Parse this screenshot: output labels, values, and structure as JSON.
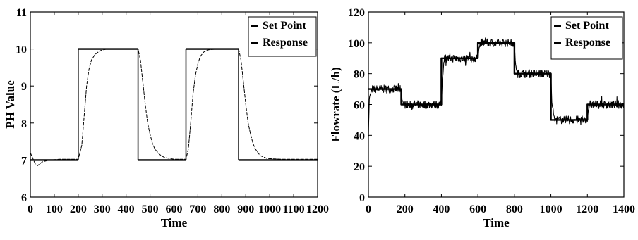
{
  "chart_data": [
    {
      "type": "line",
      "xlabel": "Time",
      "ylabel": "PH Value",
      "xlim": [
        0,
        1200
      ],
      "ylim": [
        6,
        11
      ],
      "xticks": [
        0,
        100,
        200,
        300,
        400,
        500,
        600,
        700,
        800,
        900,
        1000,
        1100,
        1200
      ],
      "yticks": [
        6,
        7,
        8,
        9,
        10,
        11
      ],
      "grid": false,
      "legend_position": "top-right",
      "series": [
        {
          "name": "Set Point",
          "style": "step",
          "x": [
            0,
            200,
            200,
            450,
            450,
            650,
            650,
            870,
            870,
            1200
          ],
          "y": [
            7,
            7,
            10,
            10,
            7,
            7,
            10,
            10,
            7,
            7
          ]
        },
        {
          "name": "Response",
          "style": "line",
          "x": [
            0,
            10,
            20,
            30,
            50,
            80,
            120,
            200,
            215,
            225,
            235,
            245,
            255,
            270,
            290,
            320,
            450,
            460,
            470,
            480,
            490,
            500,
            510,
            520,
            540,
            560,
            600,
            650,
            660,
            670,
            680,
            690,
            700,
            710,
            725,
            745,
            780,
            870,
            880,
            890,
            900,
            910,
            920,
            930,
            940,
            960,
            990,
            1050,
            1200
          ],
          "y": [
            7.2,
            7.05,
            6.9,
            6.85,
            6.95,
            7.0,
            7.02,
            7.02,
            7.4,
            8.2,
            9.0,
            9.45,
            9.7,
            9.85,
            9.95,
            10.0,
            10.0,
            9.7,
            9.1,
            8.5,
            8.0,
            7.7,
            7.45,
            7.3,
            7.15,
            7.07,
            7.02,
            7.02,
            7.3,
            8.0,
            8.8,
            9.3,
            9.6,
            9.8,
            9.92,
            9.98,
            10.0,
            10.0,
            9.7,
            9.1,
            8.5,
            8.0,
            7.7,
            7.45,
            7.3,
            7.12,
            7.04,
            7.02,
            7.02
          ]
        }
      ]
    },
    {
      "type": "line",
      "xlabel": "Time",
      "ylabel": "Flowrate (L/h)",
      "xlim": [
        0,
        1400
      ],
      "ylim": [
        0,
        120
      ],
      "xticks": [
        0,
        200,
        400,
        600,
        800,
        1000,
        1200,
        1400
      ],
      "yticks": [
        0,
        20,
        40,
        60,
        80,
        100,
        120
      ],
      "grid": false,
      "legend_position": "top-right",
      "series": [
        {
          "name": "Set Point",
          "style": "step",
          "x": [
            0,
            180,
            180,
            400,
            400,
            600,
            600,
            800,
            800,
            1000,
            1000,
            1200,
            1200,
            1400
          ],
          "y": [
            70,
            70,
            60,
            60,
            90,
            90,
            100,
            100,
            80,
            80,
            50,
            50,
            60,
            60
          ]
        },
        {
          "name": "Response",
          "style": "noisy",
          "x": [
            0,
            5,
            20,
            180,
            185,
            195,
            400,
            405,
            415,
            600,
            605,
            615,
            800,
            805,
            815,
            1000,
            1005,
            1020,
            1200,
            1205,
            1215,
            1400
          ],
          "y": [
            40,
            64,
            70,
            70,
            63,
            60,
            60,
            75,
            90,
            90,
            96,
            100,
            100,
            88,
            80,
            80,
            62,
            50,
            50,
            56,
            60,
            60
          ]
        }
      ]
    }
  ]
}
